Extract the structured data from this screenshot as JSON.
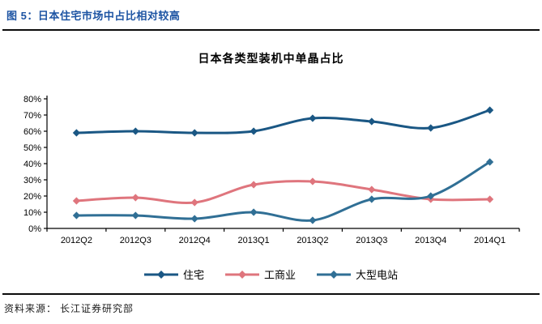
{
  "report": {
    "figure_title": "图 5：日本住宅市场中占比相对较高",
    "source_label": "资料来源：",
    "source_value": "长江证券研究部"
  },
  "chart_data": {
    "type": "line",
    "title": "日本各类型装机中单晶占比",
    "categories": [
      "2012Q2",
      "2012Q3",
      "2012Q4",
      "2013Q1",
      "2013Q2",
      "2013Q3",
      "2013Q4",
      "2014Q1"
    ],
    "series": [
      {
        "name": "住宅",
        "color": "#1A5784",
        "values": [
          59,
          60,
          59,
          60,
          68,
          66,
          62,
          73
        ]
      },
      {
        "name": "工商业",
        "color": "#DF757D",
        "values": [
          17,
          19,
          16,
          27,
          29,
          24,
          18,
          18
        ]
      },
      {
        "name": "大型电站",
        "color": "#306F95",
        "values": [
          8,
          8,
          6,
          10,
          5,
          18,
          20,
          41
        ]
      }
    ],
    "ylabel": "",
    "xlabel": "",
    "ylim": [
      0,
      80
    ],
    "ytick_step": 10,
    "ytick_labels": [
      "0%",
      "10%",
      "20%",
      "30%",
      "40%",
      "50%",
      "60%",
      "70%",
      "80%"
    ],
    "grid": false,
    "marker": "diamond",
    "legend_position": "bottom",
    "axis_color": "#000000",
    "text_color": "#000000"
  }
}
